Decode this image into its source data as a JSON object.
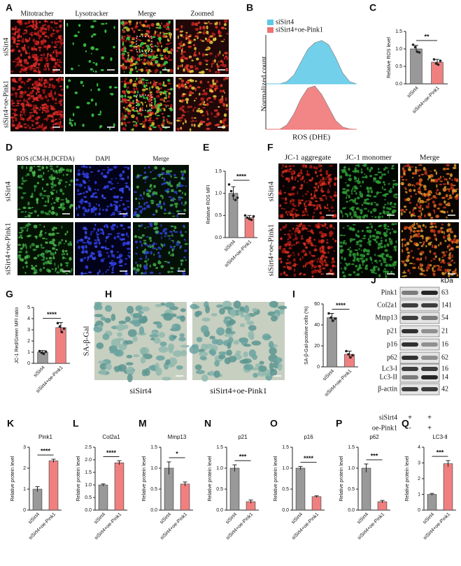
{
  "figure": {
    "panel_letters": [
      "A",
      "B",
      "C",
      "D",
      "E",
      "F",
      "G",
      "H",
      "I",
      "J",
      "K",
      "L",
      "M",
      "N",
      "O",
      "P",
      "Q"
    ],
    "A": {
      "columns": [
        "Mitotracher",
        "Lysotracker",
        "Merge",
        "Zoomed"
      ],
      "rows": [
        "siSirt4",
        "siSirt4+oe-Pink1"
      ]
    },
    "D": {
      "columns": [
        "ROS (CM-H₂DCFDA)",
        "DAPI",
        "Merge"
      ],
      "rows": [
        "siSirt4",
        "siSirt4+oe-Pink1"
      ]
    },
    "F": {
      "columns": [
        "JC-1 aggregate",
        "JC-1 monomer",
        "Merge"
      ],
      "rows": [
        "siSirt4",
        "siSirt4+oe-Pink1"
      ]
    },
    "H": {
      "row_label": "SA-β-Gal",
      "columns": [
        "siSirt4",
        "siSirt4+oe-Pink1"
      ]
    },
    "J": {
      "unit": "kDa",
      "proteins": [
        "Pink1",
        "Col2a1",
        "Mmp13",
        "p21",
        "p16",
        "p62",
        "Lc3-I",
        "Lc3-II",
        "β-actin"
      ],
      "kda": [
        63,
        141,
        54,
        21,
        16,
        62,
        16,
        14,
        42
      ],
      "conditions": [
        {
          "name": "siSirt4",
          "marks": [
            "+",
            "+"
          ]
        },
        {
          "name": "oe-Pink1",
          "marks": [
            "-",
            "+"
          ]
        }
      ]
    }
  },
  "chart_data": [
    {
      "type": "density",
      "x_label": "ROS (DHE)",
      "y_label": "Normalized count",
      "series": [
        {
          "name": "siSirt4",
          "color": "#5bc8e6",
          "values": [
            0,
            0.05,
            0.2,
            0.5,
            0.8,
            0.95,
            1,
            0.9,
            0.6,
            0.25,
            0.05,
            0
          ]
        },
        {
          "name": "siSirt4+oe-Pink1",
          "color": "#f07070",
          "values": [
            0,
            0.1,
            0.35,
            0.7,
            0.95,
            1,
            0.8,
            0.5,
            0.2,
            0.05,
            0.01,
            0
          ]
        }
      ]
    },
    {
      "type": "bar",
      "y_label": "Relative ROS level",
      "categories": [
        "siSirt4",
        "siSirt4+oe-Pink1"
      ],
      "values": [
        1.0,
        0.62
      ],
      "errors": [
        0.1,
        0.08
      ],
      "points": [
        [
          1.12,
          1.05,
          0.92,
          0.9
        ],
        [
          0.7,
          0.58,
          0.55,
          0.66
        ]
      ],
      "colors": [
        "#999999",
        "#f08080"
      ],
      "ylim": [
        0,
        1.5
      ],
      "yticks": [
        {
          "value": 0,
          "label": "0.0"
        },
        0.5,
        {
          "value": 1,
          "label": "1.0"
        },
        1.5
      ],
      "significance": "**"
    },
    {
      "type": "bar",
      "y_label": "Relative ROS MFI",
      "categories": [
        "siSirt4",
        "siSirt4+oe-Pink1"
      ],
      "values": [
        1.0,
        0.45
      ],
      "errors": [
        0.15,
        0.05
      ],
      "points": [
        [
          1.2,
          1.05,
          0.95,
          0.85,
          0.9
        ],
        [
          0.5,
          0.45,
          0.42,
          0.4,
          0.48
        ]
      ],
      "colors": [
        "#999999",
        "#f08080"
      ],
      "ylim": [
        0,
        1.5
      ],
      "yticks": [
        {
          "value": 0,
          "label": "0.0"
        },
        0.5,
        {
          "value": 1,
          "label": "1.0"
        },
        1.5
      ],
      "significance": "****"
    },
    {
      "type": "bar",
      "y_label": "JC-1 Red/Green MFI ratio",
      "categories": [
        "siSirt4",
        "siSirt4+oe-Pink1"
      ],
      "values": [
        1.0,
        3.2
      ],
      "errors": [
        0.15,
        0.45
      ],
      "points": [
        [
          1.1,
          0.95,
          0.85,
          1.05
        ],
        [
          3.6,
          3.3,
          2.8,
          3.1
        ]
      ],
      "colors": [
        "#999999",
        "#f08080"
      ],
      "ylim": [
        0,
        5
      ],
      "yticks": [
        0,
        1,
        2,
        3,
        4,
        5
      ],
      "significance": "****"
    },
    {
      "type": "bar",
      "y_label": "SA-β-Gal-positive cells (%)",
      "categories": [
        "siSirt4",
        "siSirt4+oe-Pink1"
      ],
      "values": [
        47,
        12
      ],
      "errors": [
        4,
        3
      ],
      "points": [
        [
          51,
          47,
          44,
          46
        ],
        [
          15,
          12,
          9,
          11
        ]
      ],
      "colors": [
        "#999999",
        "#f08080"
      ],
      "ylim": [
        0,
        60
      ],
      "yticks": [
        0,
        20,
        40,
        60
      ],
      "significance": "****"
    },
    {
      "type": "bar",
      "title": "Pink1",
      "y_label": "Relative protein level",
      "categories": [
        "siSirt4",
        "siSirt4+oe-Pink1"
      ],
      "values": [
        1.0,
        2.35
      ],
      "errors": [
        0.12,
        0.08
      ],
      "colors": [
        "#999999",
        "#f08080"
      ],
      "ylim": [
        0,
        3
      ],
      "yticks": [
        0,
        1,
        2,
        3
      ],
      "significance": "****"
    },
    {
      "type": "bar",
      "title": "Col2a1",
      "y_label": "Relative protein level",
      "categories": [
        "siSirt4",
        "siSirt4+oe-Pink1"
      ],
      "values": [
        1.0,
        1.88
      ],
      "errors": [
        0.04,
        0.08
      ],
      "colors": [
        "#999999",
        "#f08080"
      ],
      "ylim": [
        0,
        2.5
      ],
      "yticks": [
        {
          "value": 0,
          "label": "0.0"
        },
        0.5,
        {
          "value": 1,
          "label": "1.0"
        },
        1.5,
        {
          "value": 2,
          "label": "2.0"
        },
        2.5
      ],
      "significance": "****"
    },
    {
      "type": "bar",
      "title": "Mmp13",
      "y_label": "Relative protein level",
      "categories": [
        "siSirt4",
        "siSirt4+oe-Pink1"
      ],
      "values": [
        1.0,
        0.62
      ],
      "errors": [
        0.15,
        0.05
      ],
      "colors": [
        "#999999",
        "#f08080"
      ],
      "ylim": [
        0,
        1.5
      ],
      "yticks": [
        {
          "value": 0,
          "label": "0.0"
        },
        0.5,
        {
          "value": 1,
          "label": "1.0"
        },
        1.5
      ],
      "significance": "*"
    },
    {
      "type": "bar",
      "title": "p21",
      "y_label": "Relative protein level",
      "categories": [
        "siSirt4",
        "siSirt4+oe-Pink1"
      ],
      "values": [
        1.0,
        0.2
      ],
      "errors": [
        0.08,
        0.04
      ],
      "colors": [
        "#999999",
        "#f08080"
      ],
      "ylim": [
        0,
        1.5
      ],
      "yticks": [
        {
          "value": 0,
          "label": "0.0"
        },
        0.5,
        {
          "value": 1,
          "label": "1.0"
        },
        1.5
      ],
      "significance": "***"
    },
    {
      "type": "bar",
      "title": "p16",
      "y_label": "Relative protein level",
      "categories": [
        "siSirt4",
        "siSirt4+oe-Pink1"
      ],
      "values": [
        1.0,
        0.32
      ],
      "errors": [
        0.04,
        0.02
      ],
      "colors": [
        "#999999",
        "#f08080"
      ],
      "ylim": [
        0,
        1.5
      ],
      "yticks": [
        {
          "value": 0,
          "label": "0.0"
        },
        0.5,
        {
          "value": 1,
          "label": "1.0"
        },
        1.5
      ],
      "significance": "****"
    },
    {
      "type": "bar",
      "title": "p62",
      "y_label": "Relative protein level",
      "categories": [
        "siSirt4",
        "siSirt4+oe-Pink1"
      ],
      "values": [
        1.0,
        0.2
      ],
      "errors": [
        0.1,
        0.03
      ],
      "colors": [
        "#999999",
        "#f08080"
      ],
      "ylim": [
        0,
        1.5
      ],
      "yticks": [
        {
          "value": 0,
          "label": "0.0"
        },
        0.5,
        {
          "value": 1,
          "label": "1.0"
        },
        1.5
      ],
      "significance": "***"
    },
    {
      "type": "bar",
      "title": "LC3-Ⅱ",
      "y_label": "Relative protein level",
      "categories": [
        "siSirt4",
        "siSirt4+oe-Pink1"
      ],
      "values": [
        1.0,
        2.95
      ],
      "errors": [
        0.06,
        0.2
      ],
      "colors": [
        "#999999",
        "#f08080"
      ],
      "ylim": [
        0,
        4
      ],
      "yticks": [
        0,
        1,
        2,
        3,
        4
      ],
      "significance": "***"
    }
  ]
}
